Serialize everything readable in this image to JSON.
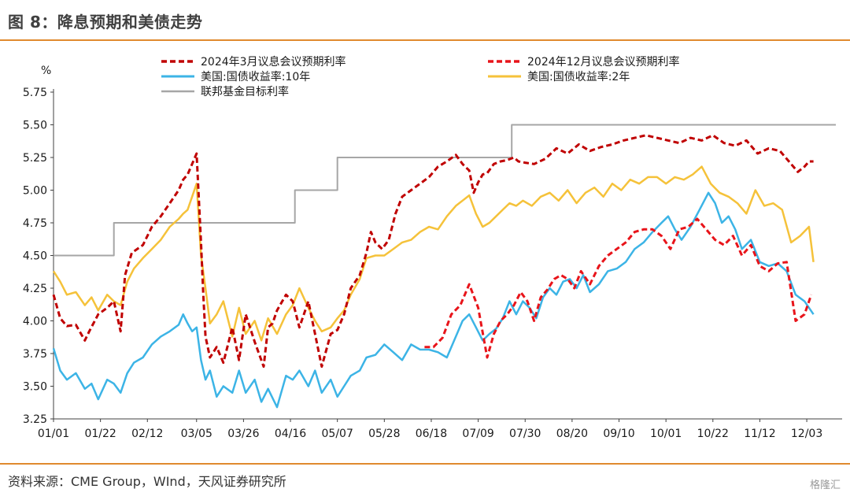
{
  "figure_title": "图 8：降息预期和美债走势",
  "source_text": "资料来源：CME Group，WInd，天风证券研究所",
  "watermark_text": "格隆汇",
  "chart_data": {
    "type": "line",
    "unit_label": "%",
    "ylim": [
      3.25,
      5.75
    ],
    "y_ticks": [
      "3.25",
      "3.50",
      "3.75",
      "4.00",
      "4.25",
      "4.50",
      "4.75",
      "5.00",
      "5.25",
      "5.50",
      "5.75"
    ],
    "x_ticks": [
      {
        "label": "01/01",
        "pos": 0
      },
      {
        "label": "01/22",
        "pos": 21
      },
      {
        "label": "02/12",
        "pos": 42
      },
      {
        "label": "03/05",
        "pos": 64
      },
      {
        "label": "03/26",
        "pos": 85
      },
      {
        "label": "04/16",
        "pos": 106
      },
      {
        "label": "05/07",
        "pos": 127
      },
      {
        "label": "05/28",
        "pos": 148
      },
      {
        "label": "06/18",
        "pos": 169
      },
      {
        "label": "07/09",
        "pos": 190
      },
      {
        "label": "07/30",
        "pos": 211
      },
      {
        "label": "08/20",
        "pos": 232
      },
      {
        "label": "09/10",
        "pos": 253
      },
      {
        "label": "10/01",
        "pos": 274
      },
      {
        "label": "10/22",
        "pos": 295
      },
      {
        "label": "11/12",
        "pos": 316
      },
      {
        "label": "12/03",
        "pos": 337
      }
    ],
    "xlim": [
      0,
      350
    ],
    "legend": "top",
    "grid": false,
    "series": [
      {
        "name": "2024年3月议息会议预期利率",
        "color": "#c00000",
        "style": "dashed",
        "width": 3,
        "x": [
          0,
          3,
          6,
          10,
          14,
          16,
          20,
          24,
          27,
          30,
          32,
          35,
          40,
          44,
          48,
          52,
          56,
          58,
          60,
          62,
          64,
          66,
          67,
          68,
          70,
          73,
          76,
          80,
          83,
          86,
          90,
          94,
          96,
          98,
          100,
          104,
          107,
          110,
          114,
          117,
          120,
          124,
          127,
          130,
          133,
          137,
          140,
          142,
          144,
          147,
          150,
          153,
          156,
          160,
          164,
          168,
          172,
          176,
          180,
          183,
          186,
          188,
          190,
          192,
          194,
          197,
          200,
          203,
          206,
          208,
          211,
          215,
          220,
          225,
          230,
          235,
          240,
          245,
          250,
          255,
          260,
          265,
          270,
          275,
          280,
          285,
          290,
          295,
          300,
          305,
          310,
          315,
          320,
          325,
          330,
          333,
          336,
          338,
          340
        ],
        "y": [
          4.2,
          4.02,
          3.96,
          3.97,
          3.85,
          3.92,
          4.05,
          4.1,
          4.15,
          3.92,
          4.35,
          4.52,
          4.58,
          4.72,
          4.8,
          4.9,
          5.0,
          5.08,
          5.12,
          5.2,
          5.28,
          4.6,
          4.2,
          3.88,
          3.72,
          3.8,
          3.68,
          3.95,
          3.7,
          4.05,
          3.84,
          3.65,
          3.95,
          3.98,
          4.08,
          4.2,
          4.15,
          3.95,
          4.15,
          3.9,
          3.65,
          3.9,
          3.93,
          4.05,
          4.25,
          4.35,
          4.52,
          4.68,
          4.6,
          4.55,
          4.62,
          4.82,
          4.95,
          5.0,
          5.05,
          5.1,
          5.18,
          5.22,
          5.27,
          5.2,
          5.15,
          4.98,
          5.06,
          5.12,
          5.13,
          5.2,
          5.22,
          5.23,
          5.25,
          5.22,
          5.21,
          5.2,
          5.24,
          5.32,
          5.28,
          5.35,
          5.3,
          5.33,
          5.35,
          5.38,
          5.4,
          5.42,
          5.4,
          5.38,
          5.36,
          5.4,
          5.38,
          5.42,
          5.36,
          5.34,
          5.38,
          5.28,
          5.32,
          5.3,
          5.2,
          5.14,
          5.18,
          5.22,
          5.22
        ]
      },
      {
        "name": "2024年12月议息会议预期利率",
        "color": "#e8141a",
        "style": "dashed",
        "width": 3,
        "x": [
          166,
          170,
          174,
          178,
          182,
          186,
          190,
          194,
          197,
          200,
          203,
          206,
          209,
          212,
          215,
          218,
          221,
          224,
          227,
          230,
          233,
          236,
          240,
          244,
          248,
          252,
          256,
          260,
          264,
          268,
          272,
          276,
          280,
          284,
          288,
          292,
          296,
          300,
          304,
          308,
          312,
          316,
          320,
          324,
          328,
          332,
          336,
          339
        ],
        "y": [
          3.8,
          3.8,
          3.87,
          4.05,
          4.12,
          4.28,
          4.1,
          3.72,
          3.9,
          4.0,
          4.05,
          4.12,
          4.22,
          4.15,
          4.0,
          4.18,
          4.24,
          4.32,
          4.35,
          4.32,
          4.25,
          4.38,
          4.28,
          4.42,
          4.5,
          4.55,
          4.6,
          4.68,
          4.7,
          4.7,
          4.65,
          4.55,
          4.7,
          4.72,
          4.78,
          4.7,
          4.62,
          4.58,
          4.65,
          4.5,
          4.58,
          4.42,
          4.38,
          4.44,
          4.45,
          4.0,
          4.05,
          4.2
        ]
      },
      {
        "name": "美国:国债收益率:10年",
        "color": "#3cb4e6",
        "style": "solid",
        "width": 2.5,
        "x": [
          0,
          3,
          6,
          10,
          14,
          17,
          20,
          24,
          27,
          30,
          33,
          36,
          40,
          44,
          48,
          52,
          56,
          58,
          60,
          62,
          64,
          66,
          68,
          70,
          73,
          76,
          80,
          83,
          86,
          90,
          93,
          96,
          100,
          104,
          107,
          110,
          114,
          117,
          120,
          124,
          127,
          130,
          133,
          137,
          140,
          144,
          148,
          152,
          156,
          160,
          164,
          168,
          172,
          176,
          180,
          183,
          186,
          189,
          192,
          195,
          198,
          201,
          204,
          207,
          210,
          213,
          216,
          219,
          222,
          225,
          228,
          231,
          234,
          237,
          240,
          244,
          248,
          252,
          256,
          260,
          264,
          268,
          272,
          275,
          278,
          281,
          285,
          289,
          293,
          296,
          299,
          302,
          305,
          308,
          312,
          316,
          320,
          324,
          328,
          332,
          336,
          340
        ],
        "y": [
          3.79,
          3.62,
          3.55,
          3.6,
          3.48,
          3.52,
          3.4,
          3.55,
          3.52,
          3.45,
          3.6,
          3.68,
          3.72,
          3.82,
          3.88,
          3.92,
          3.97,
          4.05,
          3.98,
          3.92,
          3.95,
          3.7,
          3.55,
          3.62,
          3.42,
          3.5,
          3.45,
          3.62,
          3.45,
          3.55,
          3.38,
          3.48,
          3.34,
          3.58,
          3.55,
          3.62,
          3.5,
          3.62,
          3.45,
          3.55,
          3.42,
          3.5,
          3.58,
          3.62,
          3.72,
          3.74,
          3.82,
          3.76,
          3.7,
          3.82,
          3.78,
          3.78,
          3.76,
          3.72,
          3.88,
          4.0,
          4.05,
          3.95,
          3.85,
          3.9,
          3.94,
          4.02,
          4.15,
          4.05,
          4.15,
          4.1,
          4.02,
          4.18,
          4.25,
          4.2,
          4.3,
          4.32,
          4.25,
          4.35,
          4.22,
          4.28,
          4.38,
          4.4,
          4.45,
          4.55,
          4.6,
          4.68,
          4.75,
          4.8,
          4.7,
          4.62,
          4.72,
          4.85,
          4.98,
          4.9,
          4.75,
          4.8,
          4.7,
          4.55,
          4.62,
          4.45,
          4.42,
          4.44,
          4.38,
          4.2,
          4.15,
          4.05
        ]
      },
      {
        "name": "美国:国债收益率:2年",
        "color": "#f5c23a",
        "style": "solid",
        "width": 2.5,
        "x": [
          0,
          3,
          6,
          10,
          14,
          17,
          20,
          24,
          27,
          30,
          33,
          36,
          40,
          44,
          48,
          52,
          56,
          58,
          60,
          62,
          64,
          66,
          68,
          70,
          73,
          76,
          80,
          83,
          86,
          90,
          93,
          96,
          100,
          104,
          107,
          110,
          114,
          117,
          120,
          124,
          127,
          130,
          133,
          137,
          140,
          144,
          148,
          152,
          156,
          160,
          164,
          168,
          172,
          176,
          180,
          183,
          186,
          189,
          192,
          195,
          198,
          201,
          204,
          207,
          210,
          214,
          218,
          222,
          226,
          230,
          234,
          238,
          242,
          246,
          250,
          254,
          258,
          262,
          266,
          270,
          274,
          278,
          282,
          286,
          290,
          294,
          298,
          302,
          306,
          310,
          314,
          318,
          322,
          326,
          330,
          334,
          338,
          340
        ],
        "y": [
          4.38,
          4.3,
          4.2,
          4.22,
          4.12,
          4.18,
          4.08,
          4.2,
          4.15,
          4.12,
          4.3,
          4.4,
          4.48,
          4.55,
          4.62,
          4.72,
          4.78,
          4.82,
          4.85,
          4.95,
          5.05,
          4.5,
          4.25,
          3.98,
          4.05,
          4.15,
          3.88,
          4.1,
          3.9,
          4.0,
          3.85,
          4.02,
          3.9,
          4.05,
          4.12,
          4.25,
          4.1,
          4.0,
          3.92,
          3.95,
          4.02,
          4.08,
          4.2,
          4.32,
          4.48,
          4.5,
          4.5,
          4.55,
          4.6,
          4.62,
          4.68,
          4.72,
          4.7,
          4.8,
          4.88,
          4.92,
          4.96,
          4.82,
          4.72,
          4.75,
          4.8,
          4.85,
          4.9,
          4.88,
          4.92,
          4.88,
          4.95,
          4.98,
          4.92,
          5.0,
          4.9,
          4.98,
          5.02,
          4.95,
          5.05,
          5.0,
          5.08,
          5.05,
          5.1,
          5.1,
          5.05,
          5.1,
          5.08,
          5.12,
          5.18,
          5.05,
          4.98,
          4.95,
          4.9,
          4.82,
          5.0,
          4.88,
          4.9,
          4.85,
          4.6,
          4.65,
          4.72,
          4.45
        ]
      },
      {
        "name": "联邦基金目标利率",
        "color": "#a6a6a6",
        "style": "solid",
        "width": 2,
        "x": [
          0,
          27,
          27,
          70,
          70,
          108,
          108,
          127,
          127,
          205,
          205,
          350
        ],
        "y": [
          4.5,
          4.5,
          4.75,
          4.75,
          4.75,
          4.75,
          5.0,
          5.0,
          5.25,
          5.25,
          5.5,
          5.5
        ]
      }
    ]
  }
}
